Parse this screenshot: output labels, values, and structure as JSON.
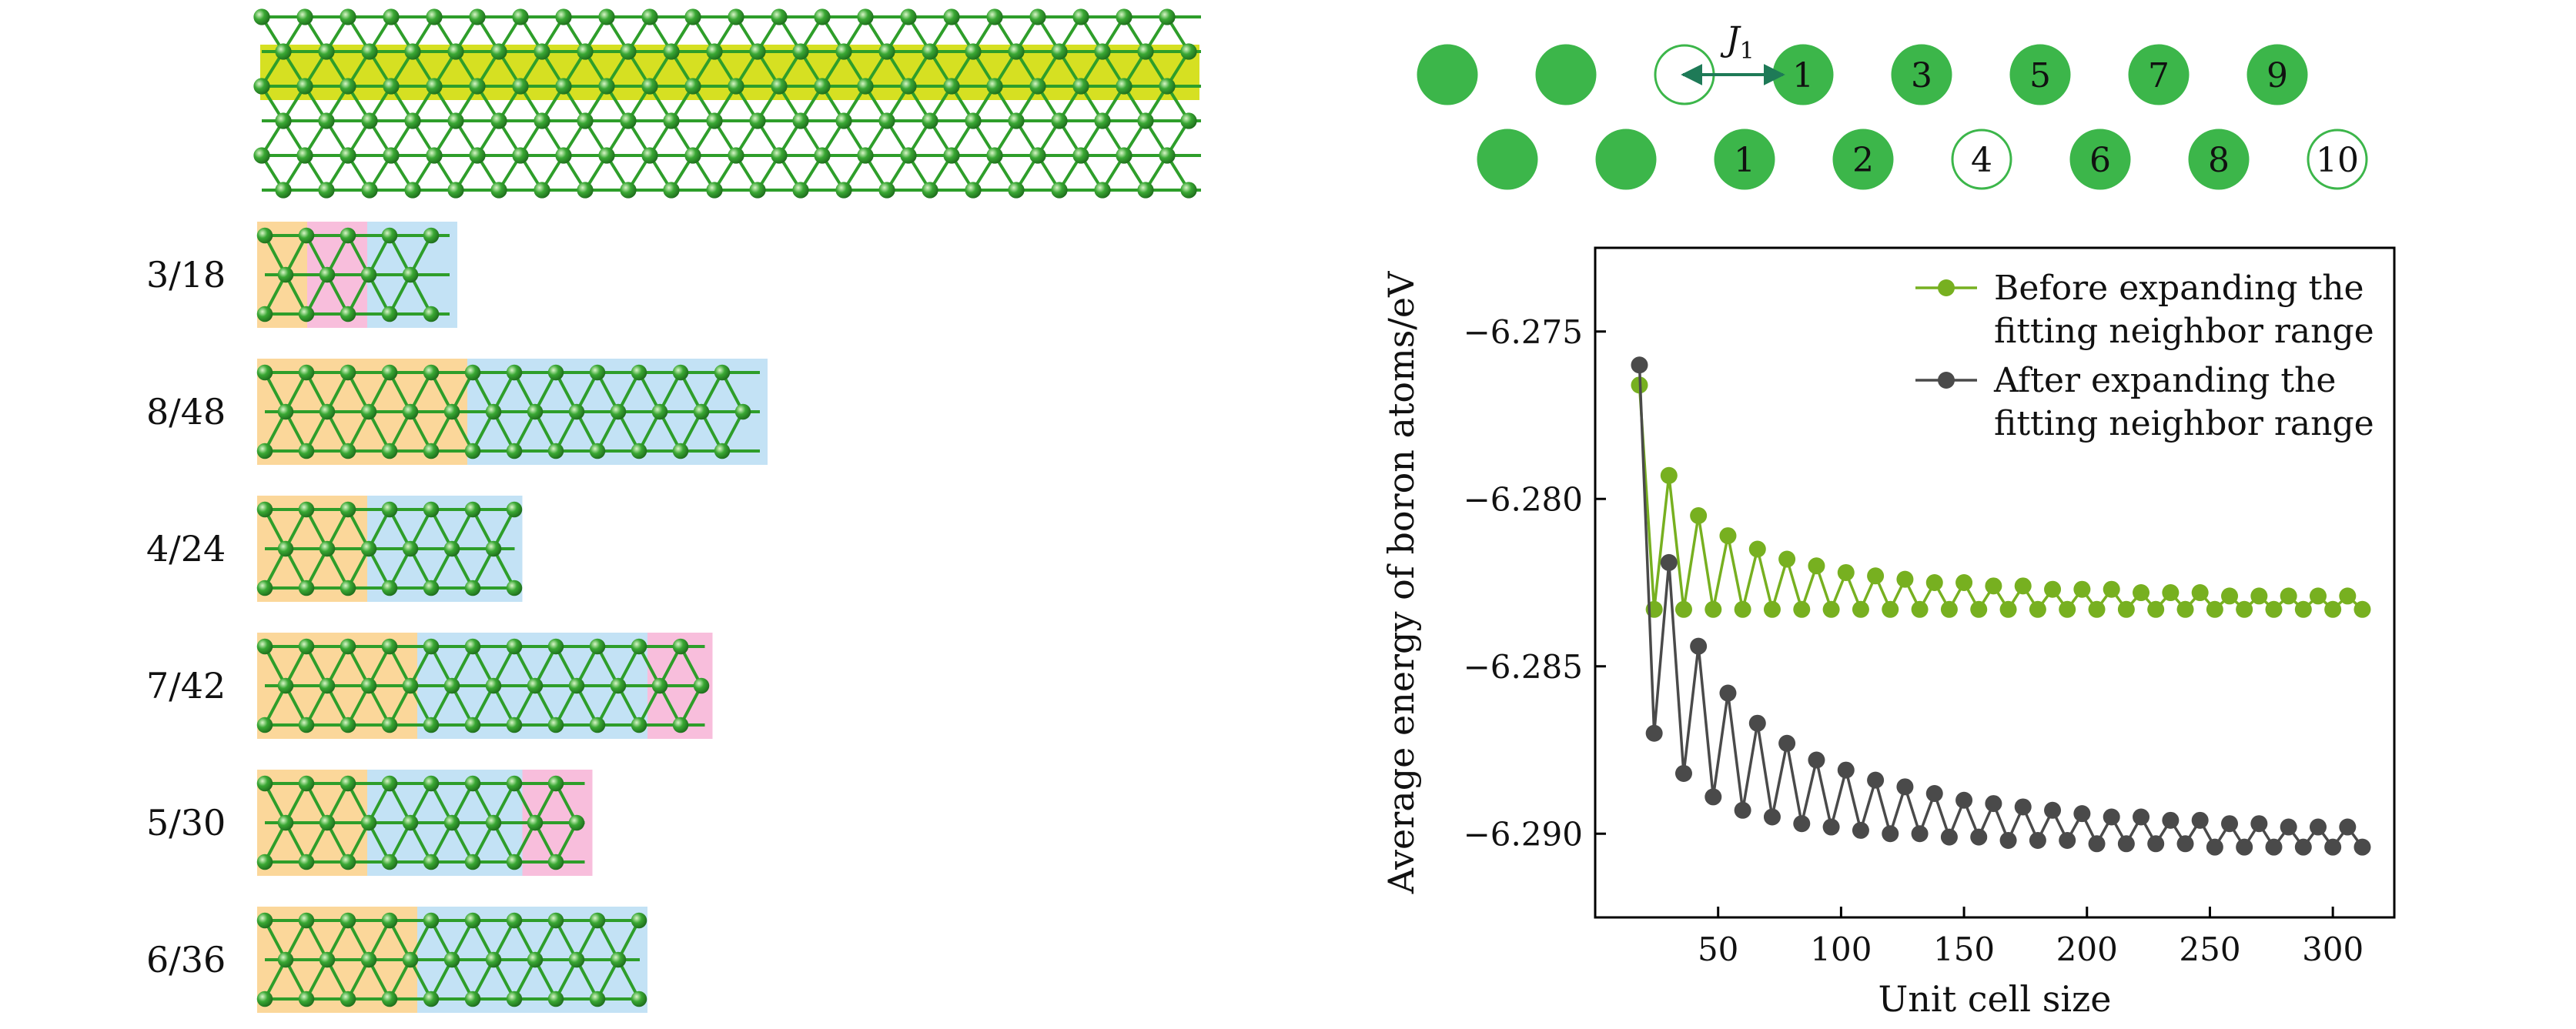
{
  "figure": {
    "sheet": {
      "atom_color": "#2e9e2a",
      "band_color": "#d6e022",
      "region_colors": {
        "a": "#fbd79a",
        "b": "#c3e2f5",
        "c": "#f8bedc"
      }
    },
    "ribbons": [
      {
        "label": "3/18",
        "regions": [
          {
            "kind": "a",
            "width": 0.5
          },
          {
            "kind": "c",
            "width": 0.6
          },
          {
            "kind": "b",
            "width": 0.9
          }
        ]
      },
      {
        "label": "8/48",
        "regions": [
          {
            "kind": "a",
            "width": 2.1
          },
          {
            "kind": "b",
            "width": 3.0
          }
        ]
      },
      {
        "label": "4/24",
        "regions": [
          {
            "kind": "a",
            "width": 1.1
          },
          {
            "kind": "b",
            "width": 1.55
          }
        ]
      },
      {
        "label": "7/42",
        "regions": [
          {
            "kind": "a",
            "width": 1.6
          },
          {
            "kind": "b",
            "width": 2.3
          },
          {
            "kind": "c",
            "width": 0.65
          }
        ]
      },
      {
        "label": "5/30",
        "regions": [
          {
            "kind": "a",
            "width": 1.1
          },
          {
            "kind": "b",
            "width": 1.55
          },
          {
            "kind": "c",
            "width": 0.7
          }
        ]
      },
      {
        "label": "6/36",
        "regions": [
          {
            "kind": "a",
            "width": 1.6
          },
          {
            "kind": "b",
            "width": 2.3
          }
        ]
      }
    ],
    "chain": {
      "j_symbol": "J",
      "j_subscript": "1",
      "filled_color": "#3cb64a",
      "top_row": [
        {
          "label": "",
          "filled": true
        },
        {
          "label": "",
          "filled": true
        },
        {
          "label": "",
          "filled": false
        },
        {
          "label": "1",
          "filled": true
        },
        {
          "label": "3",
          "filled": true
        },
        {
          "label": "5",
          "filled": true
        },
        {
          "label": "7",
          "filled": true
        },
        {
          "label": "9",
          "filled": true
        }
      ],
      "bottom_row": [
        {
          "label": "",
          "filled": true
        },
        {
          "label": "",
          "filled": true
        },
        {
          "label": "1",
          "filled": true
        },
        {
          "label": "2",
          "filled": true
        },
        {
          "label": "4",
          "filled": false
        },
        {
          "label": "6",
          "filled": true
        },
        {
          "label": "8",
          "filled": true
        },
        {
          "label": "10",
          "filled": false
        }
      ]
    }
  },
  "chart_data": {
    "type": "line",
    "xlabel": "Unit cell size",
    "ylabel": "Average energy of boron atoms/eV",
    "xlim": [
      0,
      325
    ],
    "ylim": [
      -6.2925,
      -6.2725
    ],
    "xticks": [
      50,
      100,
      150,
      200,
      250,
      300
    ],
    "yticks": [
      -6.275,
      -6.28,
      -6.285,
      -6.29
    ],
    "grid": false,
    "legend_position": "top-right",
    "x": [
      18,
      24,
      30,
      36,
      42,
      48,
      54,
      60,
      66,
      72,
      78,
      84,
      90,
      96,
      102,
      108,
      114,
      120,
      126,
      132,
      138,
      144,
      150,
      156,
      162,
      168,
      174,
      180,
      186,
      192,
      198,
      204,
      210,
      216,
      222,
      228,
      234,
      240,
      246,
      252,
      258,
      264,
      270,
      276,
      282,
      288,
      294,
      300,
      306,
      312
    ],
    "series": [
      {
        "name": "Before expanding the fitting neighbor range",
        "color": "#77b020",
        "values": [
          -6.2766,
          -6.2833,
          -6.2793,
          -6.2833,
          -6.2805,
          -6.2833,
          -6.2811,
          -6.2833,
          -6.2815,
          -6.2833,
          -6.2818,
          -6.2833,
          -6.282,
          -6.2833,
          -6.2822,
          -6.2833,
          -6.2823,
          -6.2833,
          -6.2824,
          -6.2833,
          -6.2825,
          -6.2833,
          -6.2825,
          -6.2833,
          -6.2826,
          -6.2833,
          -6.2826,
          -6.2833,
          -6.2827,
          -6.2833,
          -6.2827,
          -6.2833,
          -6.2827,
          -6.2833,
          -6.2828,
          -6.2833,
          -6.2828,
          -6.2833,
          -6.2828,
          -6.2833,
          -6.2829,
          -6.2833,
          -6.2829,
          -6.2833,
          -6.2829,
          -6.2833,
          -6.2829,
          -6.2833,
          -6.2829,
          -6.2833
        ]
      },
      {
        "name": "After expanding the fitting neighbor range",
        "color": "#4a4a4a",
        "values": [
          -6.276,
          -6.287,
          -6.2819,
          -6.2882,
          -6.2844,
          -6.2889,
          -6.2858,
          -6.2893,
          -6.2867,
          -6.2895,
          -6.2873,
          -6.2897,
          -6.2878,
          -6.2898,
          -6.2881,
          -6.2899,
          -6.2884,
          -6.29,
          -6.2886,
          -6.29,
          -6.2888,
          -6.2901,
          -6.289,
          -6.2901,
          -6.2891,
          -6.2902,
          -6.2892,
          -6.2902,
          -6.2893,
          -6.2902,
          -6.2894,
          -6.2903,
          -6.2895,
          -6.2903,
          -6.2895,
          -6.2903,
          -6.2896,
          -6.2903,
          -6.2896,
          -6.2904,
          -6.2897,
          -6.2904,
          -6.2897,
          -6.2904,
          -6.2898,
          -6.2904,
          -6.2898,
          -6.2904,
          -6.2898,
          -6.2904
        ]
      }
    ]
  }
}
